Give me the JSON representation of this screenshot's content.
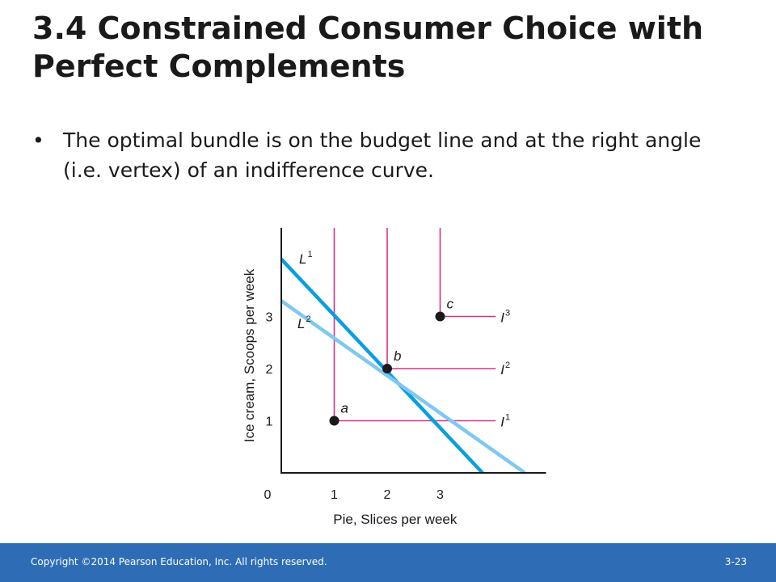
{
  "slide": {
    "title": "3.4 Constrained Consumer Choice with Perfect Complements",
    "bullet": "The optimal bundle is on the budget line and at the right angle (i.e. vertex) of an indifference curve.",
    "bullet_marker": "•"
  },
  "footer": {
    "copyright": "Copyright ©2014 Pearson Education, Inc. All rights reserved.",
    "page_number": "3-23"
  },
  "colors": {
    "indifference": "#d6338a",
    "budget_L1": "#0a9ee0",
    "budget_L2": "#7fc8f0",
    "axis": "#1a1a1a",
    "footer": "#2e6db5"
  },
  "chart_data": {
    "type": "line",
    "xlabel": "Pie, Slices per week",
    "ylabel": "Ice cream, Scoops per week",
    "xlim": [
      0,
      5
    ],
    "ylim": [
      0,
      4.7
    ],
    "x_ticks": [
      0,
      1,
      2,
      3
    ],
    "y_ticks": [
      1,
      2,
      3
    ],
    "indifference_curves": [
      {
        "label": "I",
        "sup": "1",
        "vertex": [
          1,
          1
        ],
        "x_end": 4.05,
        "y_end": 4.7
      },
      {
        "label": "I",
        "sup": "2",
        "vertex": [
          2,
          2
        ],
        "x_end": 4.05,
        "y_end": 4.7
      },
      {
        "label": "I",
        "sup": "3",
        "vertex": [
          3,
          3
        ],
        "x_end": 4.05,
        "y_end": 4.7
      }
    ],
    "budget_lines": [
      {
        "label": "L",
        "sup": "1",
        "points": [
          [
            0,
            4.1
          ],
          [
            3.8,
            0
          ]
        ],
        "color_key": "budget_L1"
      },
      {
        "label": "L",
        "sup": "2",
        "points": [
          [
            0,
            3.3
          ],
          [
            4.6,
            0
          ]
        ],
        "color_key": "budget_L2"
      }
    ],
    "points": [
      {
        "label": "a",
        "x": 1,
        "y": 1
      },
      {
        "label": "b",
        "x": 2,
        "y": 2
      },
      {
        "label": "c",
        "x": 3,
        "y": 3
      }
    ]
  }
}
